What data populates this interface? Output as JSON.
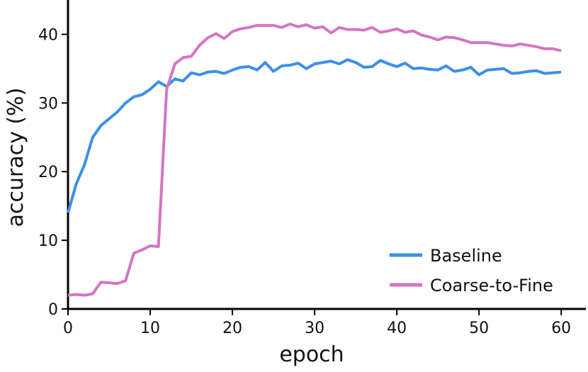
{
  "chart_data": {
    "type": "line",
    "xlabel": "epoch",
    "ylabel": "accuracy (%)",
    "xlim": [
      0,
      63
    ],
    "ylim": [
      0,
      45
    ],
    "xticks": [
      0,
      10,
      20,
      30,
      40,
      50,
      60
    ],
    "yticks": [
      0,
      10,
      20,
      30,
      40
    ],
    "grid": false,
    "legend_position": "bottom-right",
    "series": [
      {
        "name": "Baseline",
        "color": "#3b8fe8",
        "x": [
          0,
          1,
          2,
          3,
          4,
          5,
          6,
          7,
          8,
          9,
          10,
          11,
          12,
          13,
          14,
          15,
          16,
          17,
          18,
          19,
          20,
          21,
          22,
          23,
          24,
          25,
          26,
          27,
          28,
          29,
          30,
          31,
          32,
          33,
          34,
          35,
          36,
          37,
          38,
          39,
          40,
          41,
          42,
          43,
          44,
          45,
          46,
          47,
          48,
          49,
          50,
          51,
          52,
          53,
          54,
          55,
          56,
          57,
          58,
          59,
          60
        ],
        "values": [
          14.0,
          18.2,
          21.0,
          25.0,
          26.7,
          27.7,
          28.7,
          30.0,
          30.9,
          31.2,
          32.0,
          33.1,
          32.4,
          33.5,
          33.2,
          34.4,
          34.1,
          34.5,
          34.6,
          34.3,
          34.8,
          35.2,
          35.3,
          34.8,
          35.9,
          34.6,
          35.4,
          35.5,
          35.8,
          35.0,
          35.7,
          35.9,
          36.1,
          35.7,
          36.3,
          35.9,
          35.2,
          35.3,
          36.2,
          35.7,
          35.3,
          35.8,
          35.0,
          35.1,
          34.9,
          34.8,
          35.4,
          34.6,
          34.8,
          35.2,
          34.1,
          34.8,
          34.9,
          35.0,
          34.3,
          34.4,
          34.6,
          34.7,
          34.3,
          34.4,
          34.5
        ]
      },
      {
        "name": "Coarse-to-Fine",
        "color": "#d574c2",
        "x": [
          0,
          1,
          2,
          3,
          4,
          5,
          6,
          7,
          8,
          9,
          10,
          11,
          12,
          13,
          14,
          15,
          16,
          17,
          18,
          19,
          20,
          21,
          22,
          23,
          24,
          25,
          26,
          27,
          28,
          29,
          30,
          31,
          32,
          33,
          34,
          35,
          36,
          37,
          38,
          39,
          40,
          41,
          42,
          43,
          44,
          45,
          46,
          47,
          48,
          49,
          50,
          51,
          52,
          53,
          54,
          55,
          56,
          57,
          58,
          59,
          60
        ],
        "values": [
          2.0,
          2.1,
          2.0,
          2.2,
          3.9,
          3.8,
          3.7,
          4.1,
          8.1,
          8.6,
          9.2,
          9.1,
          32.0,
          35.7,
          36.6,
          36.8,
          38.4,
          39.5,
          40.1,
          39.4,
          40.4,
          40.8,
          41.0,
          41.3,
          41.3,
          41.3,
          41.0,
          41.5,
          41.1,
          41.4,
          40.9,
          41.1,
          40.2,
          41.0,
          40.7,
          40.7,
          40.6,
          41.0,
          40.3,
          40.5,
          40.8,
          40.3,
          40.5,
          39.9,
          39.6,
          39.2,
          39.6,
          39.5,
          39.2,
          38.8,
          38.8,
          38.8,
          38.6,
          38.4,
          38.3,
          38.6,
          38.4,
          38.2,
          37.9,
          37.9,
          37.6
        ]
      }
    ]
  }
}
